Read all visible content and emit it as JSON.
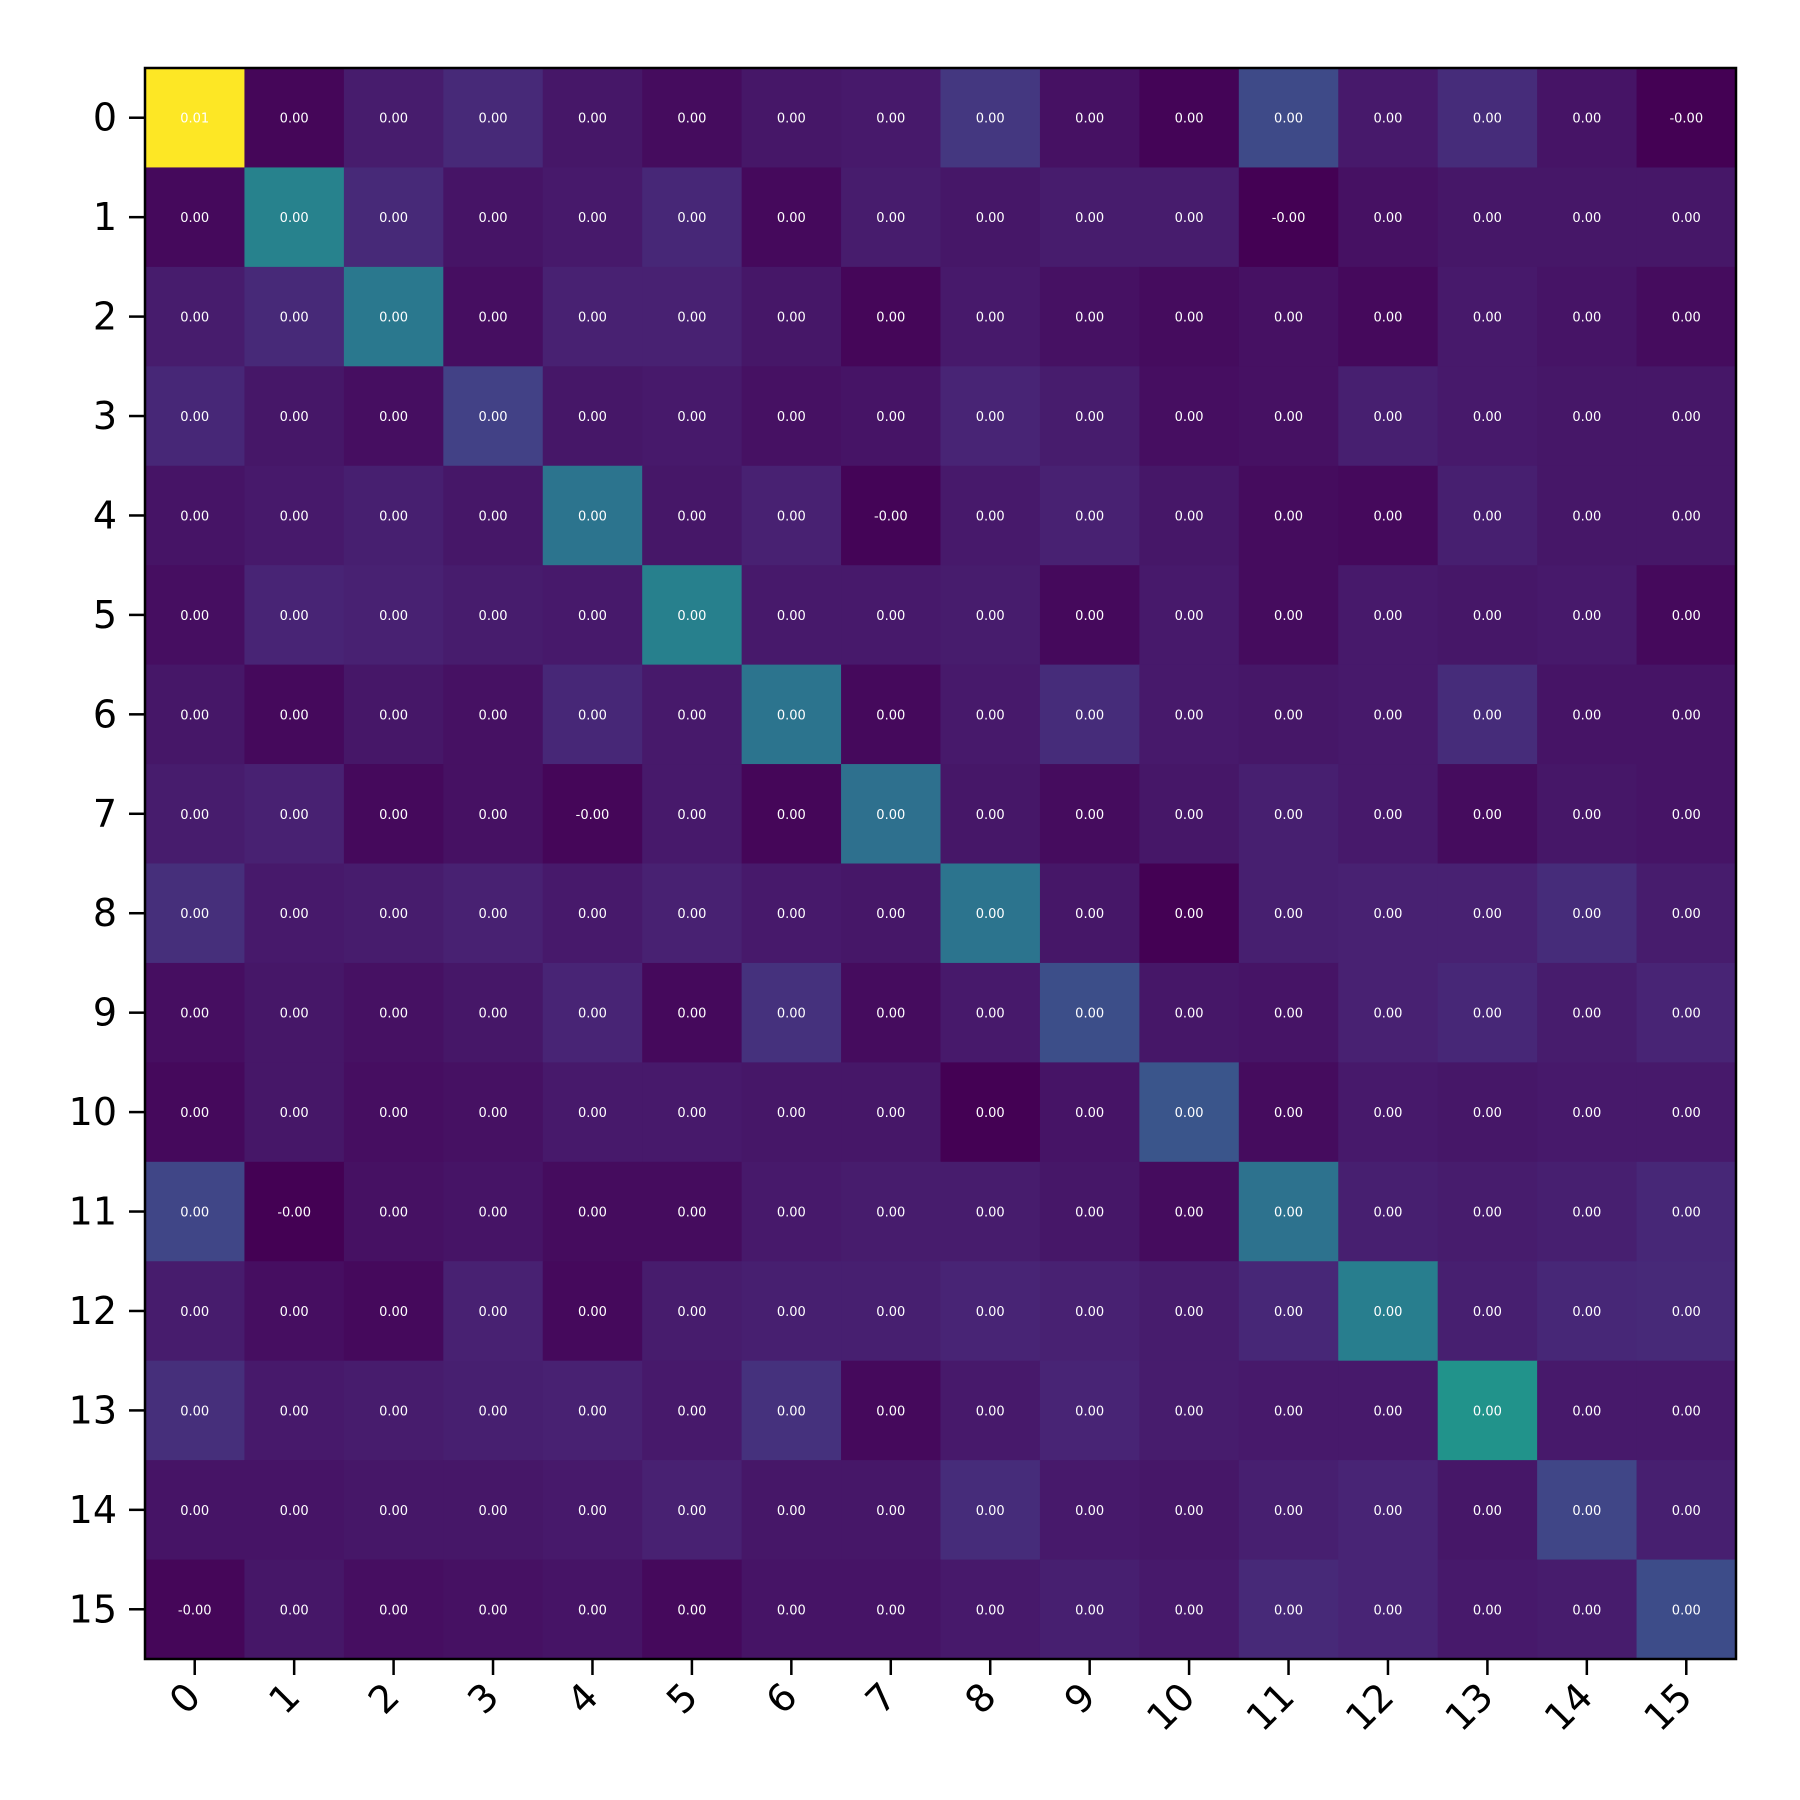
{
  "chart_data": {
    "type": "heatmap",
    "title": "",
    "xlabel": "",
    "ylabel": "",
    "colormap": "viridis",
    "x_categories": [
      "0",
      "1",
      "2",
      "3",
      "4",
      "5",
      "6",
      "7",
      "8",
      "9",
      "10",
      "11",
      "12",
      "13",
      "14",
      "15"
    ],
    "y_categories": [
      "0",
      "1",
      "2",
      "3",
      "4",
      "5",
      "6",
      "7",
      "8",
      "9",
      "10",
      "11",
      "12",
      "13",
      "14",
      "15"
    ],
    "intensity": [
      [
        1.0,
        0.02,
        0.1,
        0.15,
        0.08,
        0.04,
        0.08,
        0.09,
        0.2,
        0.06,
        0.01,
        0.28,
        0.09,
        0.16,
        0.07,
        0.0
      ],
      [
        0.03,
        0.55,
        0.15,
        0.07,
        0.09,
        0.14,
        0.03,
        0.1,
        0.08,
        0.1,
        0.1,
        0.0,
        0.06,
        0.08,
        0.08,
        0.08
      ],
      [
        0.1,
        0.15,
        0.5,
        0.05,
        0.12,
        0.12,
        0.08,
        0.02,
        0.09,
        0.06,
        0.04,
        0.06,
        0.03,
        0.09,
        0.07,
        0.04
      ],
      [
        0.14,
        0.08,
        0.05,
        0.24,
        0.08,
        0.09,
        0.06,
        0.07,
        0.13,
        0.1,
        0.05,
        0.06,
        0.11,
        0.09,
        0.08,
        0.08
      ],
      [
        0.07,
        0.09,
        0.11,
        0.08,
        0.48,
        0.08,
        0.12,
        0.01,
        0.09,
        0.12,
        0.08,
        0.04,
        0.03,
        0.11,
        0.08,
        0.08
      ],
      [
        0.05,
        0.13,
        0.12,
        0.1,
        0.09,
        0.54,
        0.09,
        0.09,
        0.1,
        0.03,
        0.09,
        0.04,
        0.09,
        0.08,
        0.09,
        0.03
      ],
      [
        0.08,
        0.03,
        0.08,
        0.06,
        0.14,
        0.09,
        0.48,
        0.03,
        0.09,
        0.16,
        0.09,
        0.08,
        0.09,
        0.16,
        0.07,
        0.07
      ],
      [
        0.1,
        0.12,
        0.03,
        0.06,
        0.02,
        0.09,
        0.02,
        0.46,
        0.08,
        0.04,
        0.08,
        0.11,
        0.09,
        0.04,
        0.08,
        0.07
      ],
      [
        0.17,
        0.09,
        0.1,
        0.12,
        0.09,
        0.12,
        0.09,
        0.08,
        0.48,
        0.08,
        0.0,
        0.11,
        0.12,
        0.12,
        0.16,
        0.1
      ],
      [
        0.05,
        0.08,
        0.06,
        0.08,
        0.13,
        0.03,
        0.18,
        0.04,
        0.09,
        0.3,
        0.08,
        0.07,
        0.12,
        0.14,
        0.1,
        0.13
      ],
      [
        0.03,
        0.08,
        0.05,
        0.06,
        0.09,
        0.09,
        0.08,
        0.08,
        0.0,
        0.07,
        0.33,
        0.04,
        0.09,
        0.08,
        0.09,
        0.09
      ],
      [
        0.26,
        0.0,
        0.06,
        0.07,
        0.04,
        0.04,
        0.09,
        0.1,
        0.1,
        0.08,
        0.04,
        0.47,
        0.11,
        0.1,
        0.11,
        0.14
      ],
      [
        0.1,
        0.05,
        0.03,
        0.12,
        0.03,
        0.1,
        0.11,
        0.11,
        0.13,
        0.12,
        0.1,
        0.14,
        0.53,
        0.11,
        0.14,
        0.15
      ],
      [
        0.17,
        0.09,
        0.1,
        0.11,
        0.12,
        0.09,
        0.18,
        0.03,
        0.09,
        0.13,
        0.1,
        0.09,
        0.09,
        0.64,
        0.09,
        0.09
      ],
      [
        0.07,
        0.07,
        0.08,
        0.08,
        0.09,
        0.12,
        0.08,
        0.08,
        0.16,
        0.09,
        0.08,
        0.11,
        0.13,
        0.08,
        0.26,
        0.11
      ],
      [
        0.02,
        0.08,
        0.05,
        0.06,
        0.07,
        0.03,
        0.07,
        0.07,
        0.09,
        0.11,
        0.09,
        0.15,
        0.13,
        0.09,
        0.1,
        0.29
      ]
    ],
    "cell_labels": [
      [
        "0.01",
        "0.00",
        "0.00",
        "0.00",
        "0.00",
        "0.00",
        "0.00",
        "0.00",
        "0.00",
        "0.00",
        "0.00",
        "0.00",
        "0.00",
        "0.00",
        "0.00",
        "-0.00"
      ],
      [
        "0.00",
        "0.00",
        "0.00",
        "0.00",
        "0.00",
        "0.00",
        "0.00",
        "0.00",
        "0.00",
        "0.00",
        "0.00",
        "-0.00",
        "0.00",
        "0.00",
        "0.00",
        "0.00"
      ],
      [
        "0.00",
        "0.00",
        "0.00",
        "0.00",
        "0.00",
        "0.00",
        "0.00",
        "0.00",
        "0.00",
        "0.00",
        "0.00",
        "0.00",
        "0.00",
        "0.00",
        "0.00",
        "0.00"
      ],
      [
        "0.00",
        "0.00",
        "0.00",
        "0.00",
        "0.00",
        "0.00",
        "0.00",
        "0.00",
        "0.00",
        "0.00",
        "0.00",
        "0.00",
        "0.00",
        "0.00",
        "0.00",
        "0.00"
      ],
      [
        "0.00",
        "0.00",
        "0.00",
        "0.00",
        "0.00",
        "0.00",
        "0.00",
        "-0.00",
        "0.00",
        "0.00",
        "0.00",
        "0.00",
        "0.00",
        "0.00",
        "0.00",
        "0.00"
      ],
      [
        "0.00",
        "0.00",
        "0.00",
        "0.00",
        "0.00",
        "0.00",
        "0.00",
        "0.00",
        "0.00",
        "0.00",
        "0.00",
        "0.00",
        "0.00",
        "0.00",
        "0.00",
        "0.00"
      ],
      [
        "0.00",
        "0.00",
        "0.00",
        "0.00",
        "0.00",
        "0.00",
        "0.00",
        "0.00",
        "0.00",
        "0.00",
        "0.00",
        "0.00",
        "0.00",
        "0.00",
        "0.00",
        "0.00"
      ],
      [
        "0.00",
        "0.00",
        "0.00",
        "0.00",
        "-0.00",
        "0.00",
        "0.00",
        "0.00",
        "0.00",
        "0.00",
        "0.00",
        "0.00",
        "0.00",
        "0.00",
        "0.00",
        "0.00"
      ],
      [
        "0.00",
        "0.00",
        "0.00",
        "0.00",
        "0.00",
        "0.00",
        "0.00",
        "0.00",
        "0.00",
        "0.00",
        "0.00",
        "0.00",
        "0.00",
        "0.00",
        "0.00",
        "0.00"
      ],
      [
        "0.00",
        "0.00",
        "0.00",
        "0.00",
        "0.00",
        "0.00",
        "0.00",
        "0.00",
        "0.00",
        "0.00",
        "0.00",
        "0.00",
        "0.00",
        "0.00",
        "0.00",
        "0.00"
      ],
      [
        "0.00",
        "0.00",
        "0.00",
        "0.00",
        "0.00",
        "0.00",
        "0.00",
        "0.00",
        "0.00",
        "0.00",
        "0.00",
        "0.00",
        "0.00",
        "0.00",
        "0.00",
        "0.00"
      ],
      [
        "0.00",
        "-0.00",
        "0.00",
        "0.00",
        "0.00",
        "0.00",
        "0.00",
        "0.00",
        "0.00",
        "0.00",
        "0.00",
        "0.00",
        "0.00",
        "0.00",
        "0.00",
        "0.00"
      ],
      [
        "0.00",
        "0.00",
        "0.00",
        "0.00",
        "0.00",
        "0.00",
        "0.00",
        "0.00",
        "0.00",
        "0.00",
        "0.00",
        "0.00",
        "0.00",
        "0.00",
        "0.00",
        "0.00"
      ],
      [
        "0.00",
        "0.00",
        "0.00",
        "0.00",
        "0.00",
        "0.00",
        "0.00",
        "0.00",
        "0.00",
        "0.00",
        "0.00",
        "0.00",
        "0.00",
        "0.00",
        "0.00",
        "0.00"
      ],
      [
        "0.00",
        "0.00",
        "0.00",
        "0.00",
        "0.00",
        "0.00",
        "0.00",
        "0.00",
        "0.00",
        "0.00",
        "0.00",
        "0.00",
        "0.00",
        "0.00",
        "0.00",
        "0.00"
      ],
      [
        "-0.00",
        "0.00",
        "0.00",
        "0.00",
        "0.00",
        "0.00",
        "0.00",
        "0.00",
        "0.00",
        "0.00",
        "0.00",
        "0.00",
        "0.00",
        "0.00",
        "0.00",
        "0.00"
      ]
    ],
    "grid": false,
    "legend": "none"
  }
}
